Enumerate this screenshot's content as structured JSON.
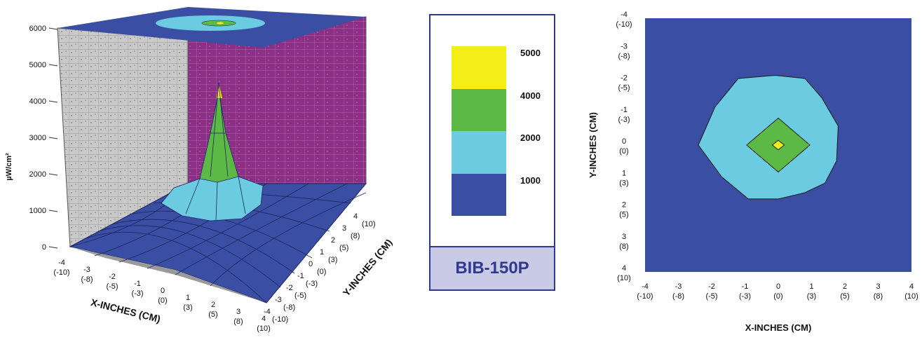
{
  "chart_data": [
    {
      "type": "surface3d",
      "ylabel": "µW/cm²",
      "xlabel": "X-INCHES (CM)",
      "zlabel": "Y-INCHES (CM)",
      "z_ticks": [
        "0",
        "1000",
        "2000",
        "3000",
        "4000",
        "5000",
        "6000"
      ],
      "x_ticks": [
        {
          "in": "-4",
          "cm": "(-10)"
        },
        {
          "in": "-3",
          "cm": "(-8)"
        },
        {
          "in": "-2",
          "cm": "(-5)"
        },
        {
          "in": "-1",
          "cm": "(-3)"
        },
        {
          "in": "0",
          "cm": "(0)"
        },
        {
          "in": "1",
          "cm": "(3)"
        },
        {
          "in": "2",
          "cm": "(5)"
        },
        {
          "in": "3",
          "cm": "(8)"
        },
        {
          "in": "4",
          "cm": "(10)"
        }
      ],
      "y_ticks": [
        {
          "in": "-4",
          "cm": "(-10)"
        },
        {
          "in": "-3",
          "cm": "(-8)"
        },
        {
          "in": "-2",
          "cm": "(-5)"
        },
        {
          "in": "-1",
          "cm": "(-3)"
        },
        {
          "in": "0",
          "cm": "(0)"
        },
        {
          "in": "1",
          "cm": "(3)"
        },
        {
          "in": "2",
          "cm": "(5)"
        },
        {
          "in": "3",
          "cm": "(8)"
        },
        {
          "in": "4",
          "cm": "(10)"
        }
      ],
      "zlim": [
        0,
        6000
      ],
      "peak": {
        "x": 0,
        "y": 0,
        "value": 5500
      }
    },
    {
      "type": "contour",
      "xlabel": "X-INCHES (CM)",
      "ylabel": "Y-INCHES (CM)",
      "xlim": [
        -4,
        4
      ],
      "ylim": [
        -4,
        4
      ],
      "x_ticks": [
        {
          "in": "-4",
          "cm": "(-10)"
        },
        {
          "in": "-3",
          "cm": "(-8)"
        },
        {
          "in": "-2",
          "cm": "(-5)"
        },
        {
          "in": "-1",
          "cm": "(-3)"
        },
        {
          "in": "0",
          "cm": "(0)"
        },
        {
          "in": "1",
          "cm": "(3)"
        },
        {
          "in": "2",
          "cm": "(5)"
        },
        {
          "in": "3",
          "cm": "(8)"
        },
        {
          "in": "4",
          "cm": "(10)"
        }
      ],
      "y_ticks": [
        {
          "in": "-4",
          "cm": "(-10)"
        },
        {
          "in": "-3",
          "cm": "(-8)"
        },
        {
          "in": "-2",
          "cm": "(-5)"
        },
        {
          "in": "-1",
          "cm": "(-3)"
        },
        {
          "in": "0",
          "cm": "(0)"
        },
        {
          "in": "1",
          "cm": "(3)"
        },
        {
          "in": "2",
          "cm": "(5)"
        },
        {
          "in": "3",
          "cm": "(8)"
        },
        {
          "in": "4",
          "cm": "(10)"
        }
      ],
      "levels": [
        {
          "min": 1000,
          "points": [
            [
              -2.4,
              0
            ],
            [
              -1.9,
              -1.2
            ],
            [
              -1.2,
              -2.1
            ],
            [
              -0.1,
              -2.2
            ],
            [
              0.8,
              -2.1
            ],
            [
              1.3,
              -1.5
            ],
            [
              1.8,
              -0.6
            ],
            [
              1.75,
              0.5
            ],
            [
              1.4,
              1.2
            ],
            [
              0.8,
              1.5
            ],
            [
              0,
              1.7
            ],
            [
              -0.9,
              1.7
            ],
            [
              -1.7,
              1.0
            ]
          ]
        },
        {
          "min": 2000,
          "points": [
            [
              0,
              -0.85
            ],
            [
              0.95,
              0
            ],
            [
              0,
              0.85
            ],
            [
              -0.95,
              0
            ]
          ]
        },
        {
          "min": 4000,
          "points": [
            [
              0,
              -0.15
            ],
            [
              0.18,
              0
            ],
            [
              0,
              0.15
            ],
            [
              -0.18,
              0
            ]
          ]
        }
      ]
    }
  ],
  "legend": {
    "title": "BIB-150P",
    "entries": [
      {
        "label": "5000",
        "color": "#f4ee16"
      },
      {
        "label": "4000",
        "color": "#5db946"
      },
      {
        "label": "2000",
        "color": "#6bcbe0"
      },
      {
        "label": "1000",
        "color": "#3a4ea3"
      }
    ]
  },
  "colors": {
    "base": "#3a4ea3",
    "level_1000": "#6bcbe0",
    "level_2000": "#5db946",
    "level_4000": "#f4ee16",
    "left_wall": "#c9c9c9",
    "right_wall": "#8c2f86",
    "axis": "#2f3a8f"
  }
}
